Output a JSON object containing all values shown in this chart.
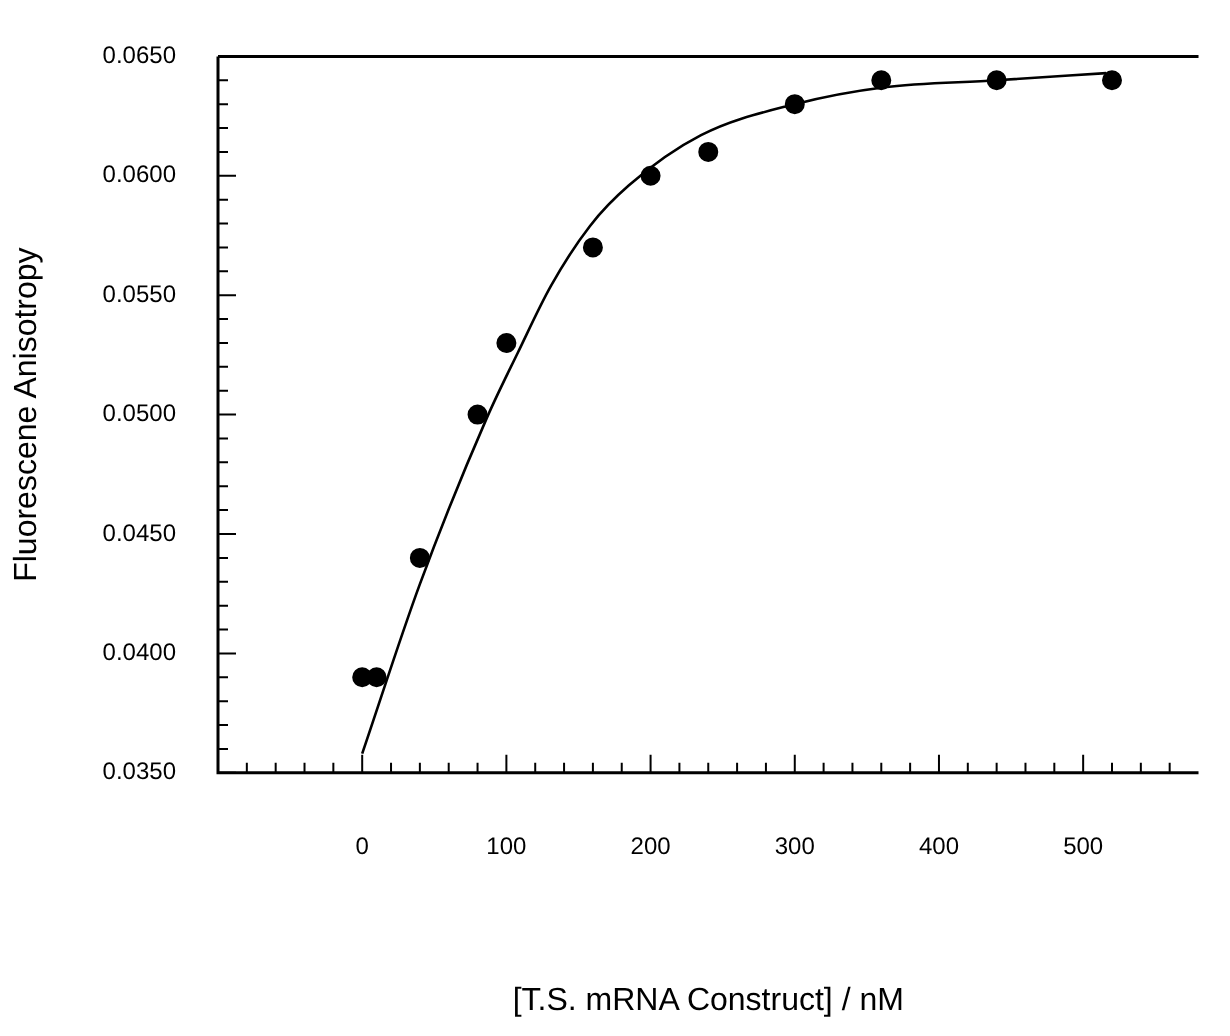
{
  "chart_data": {
    "type": "scatter",
    "xlabel": "[T.S. mRNA Construct] / nM",
    "ylabel": "Fluorescene Anisotropy",
    "xlim": [
      -100,
      580
    ],
    "ylim": [
      0.035,
      0.065
    ],
    "xticks": [
      {
        "value": -80,
        "label": null
      },
      {
        "value": -60,
        "label": null
      },
      {
        "value": -40,
        "label": null
      },
      {
        "value": -20,
        "label": null
      },
      0,
      {
        "value": 20,
        "label": null
      },
      {
        "value": 40,
        "label": null
      },
      {
        "value": 60,
        "label": null
      },
      {
        "value": 80,
        "label": null
      },
      100,
      {
        "value": 120,
        "label": null
      },
      {
        "value": 140,
        "label": null
      },
      {
        "value": 160,
        "label": null
      },
      {
        "value": 180,
        "label": null
      },
      200,
      {
        "value": 220,
        "label": null
      },
      {
        "value": 240,
        "label": null
      },
      {
        "value": 260,
        "label": null
      },
      {
        "value": 280,
        "label": null
      },
      300,
      {
        "value": 320,
        "label": null
      },
      {
        "value": 340,
        "label": null
      },
      {
        "value": 360,
        "label": null
      },
      {
        "value": 380,
        "label": null
      },
      400,
      {
        "value": 420,
        "label": null
      },
      {
        "value": 440,
        "label": null
      },
      {
        "value": 460,
        "label": null
      },
      {
        "value": 480,
        "label": null
      },
      500,
      {
        "value": 520,
        "label": null
      },
      {
        "value": 540,
        "label": null
      },
      {
        "value": 560,
        "label": null
      }
    ],
    "yticks": [
      {
        "value": 0.035,
        "label": "0.0350"
      },
      {
        "value": 0.036,
        "label": null
      },
      {
        "value": 0.037,
        "label": null
      },
      {
        "value": 0.038,
        "label": null
      },
      {
        "value": 0.039,
        "label": null
      },
      {
        "value": 0.04,
        "label": "0.0400"
      },
      {
        "value": 0.041,
        "label": null
      },
      {
        "value": 0.042,
        "label": null
      },
      {
        "value": 0.043,
        "label": null
      },
      {
        "value": 0.044,
        "label": null
      },
      {
        "value": 0.045,
        "label": "0.0450"
      },
      {
        "value": 0.046,
        "label": null
      },
      {
        "value": 0.047,
        "label": null
      },
      {
        "value": 0.048,
        "label": null
      },
      {
        "value": 0.049,
        "label": null
      },
      {
        "value": 0.05,
        "label": "0.0500"
      },
      {
        "value": 0.051,
        "label": null
      },
      {
        "value": 0.052,
        "label": null
      },
      {
        "value": 0.053,
        "label": null
      },
      {
        "value": 0.054,
        "label": null
      },
      {
        "value": 0.055,
        "label": "0.0550"
      },
      {
        "value": 0.056,
        "label": null
      },
      {
        "value": 0.057,
        "label": null
      },
      {
        "value": 0.058,
        "label": null
      },
      {
        "value": 0.059,
        "label": null
      },
      {
        "value": 0.06,
        "label": "0.0600"
      },
      {
        "value": 0.061,
        "label": null
      },
      {
        "value": 0.062,
        "label": null
      },
      {
        "value": 0.063,
        "label": null
      },
      {
        "value": 0.064,
        "label": null
      },
      {
        "value": 0.065,
        "label": "0.0650"
      }
    ],
    "series": [
      {
        "color": "#000000",
        "marker": "circle",
        "x": [
          0,
          10,
          40,
          80,
          100,
          160,
          200,
          240,
          300,
          360,
          440,
          520
        ],
        "values": [
          0.039,
          0.039,
          0.044,
          0.05,
          0.053,
          0.057,
          0.06,
          0.061,
          0.063,
          0.064,
          0.064,
          0.064
        ]
      },
      {
        "type": "line",
        "color": "#000000",
        "marker": "none",
        "line_style": "solid",
        "x": [
          0,
          40,
          86,
          108,
          131,
          158,
          185,
          235,
          300,
          361,
          440,
          516
        ],
        "values": [
          0.0358,
          0.0429,
          0.0498,
          0.0526,
          0.0554,
          0.0579,
          0.0596,
          0.0617,
          0.063,
          0.0637,
          0.064,
          0.0643
        ]
      }
    ]
  }
}
